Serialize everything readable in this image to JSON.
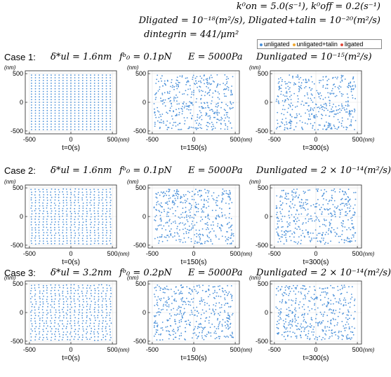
{
  "header": {
    "rates": "k⁰on = 5.0(s⁻¹), k⁰off = 0.2(s⁻¹)",
    "diffusion": "Dligated = 10⁻¹⁸(m²/s), Dligated+talin = 10⁻²⁰(m²/s)",
    "density": "dintegrin = 441/μm²"
  },
  "legend": {
    "items": [
      {
        "label": "unligated",
        "color": "#4a90d9"
      },
      {
        "label": "unligated+talin",
        "color": "#f0a830"
      },
      {
        "label": "ligated",
        "color": "#e0483a"
      }
    ]
  },
  "cases": [
    {
      "label": "Case 1:",
      "delta": "δ*ul = 1.6nm",
      "force": "fᵇ₀ = 0.1pN",
      "modulus": "E = 5000Pa",
      "d_unligated": "Dunligated = 10⁻¹⁵(m²/s)"
    },
    {
      "label": "Case 2:",
      "delta": "δ*ul = 1.6nm",
      "force": "fᵇ₀ = 0.1pN",
      "modulus": "E = 5000Pa",
      "d_unligated": "Dunligated = 2 × 10⁻¹⁴(m²/s)"
    },
    {
      "label": "Case 3:",
      "delta": "δ*ul = 3.2nm",
      "force": "fᵇ₀ = 0.2pN",
      "modulus": "E = 5000Pa",
      "d_unligated": "Dunligated = 2 × 10⁻¹⁴(m²/s)"
    }
  ],
  "chart_data": {
    "type": "scatter",
    "axis_unit": "(nm)",
    "xlim": [
      -550,
      550
    ],
    "ylim": [
      -550,
      550
    ],
    "xticks": [
      -500,
      0,
      500
    ],
    "yticks": [
      -500,
      0,
      500
    ],
    "grid": true,
    "time_labels": [
      "t=0(s)",
      "t=150(s)",
      "t=300(s)"
    ],
    "marker_color": "#4a90d9",
    "series_name": "unligated",
    "panels_note": "9 panels: rows = Case 1..3, columns = t=0, 150, 300 s",
    "initial_lattice": {
      "count_per_axis": 21,
      "range": [
        -475,
        475
      ]
    }
  }
}
